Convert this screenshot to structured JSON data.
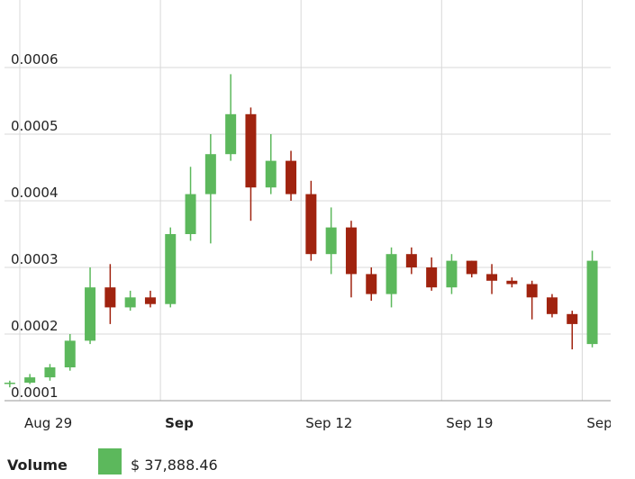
{
  "chart_data": {
    "type": "candlestick",
    "x": [
      "Aug 28",
      "Aug 29",
      "Aug 30",
      "Aug 31",
      "Sep 1",
      "Sep 2",
      "Sep 3",
      "Sep 4",
      "Sep 5",
      "Sep 6",
      "Sep 7",
      "Sep 8",
      "Sep 9",
      "Sep 10",
      "Sep 11",
      "Sep 12",
      "Sep 13",
      "Sep 14",
      "Sep 15",
      "Sep 16",
      "Sep 17",
      "Sep 18",
      "Sep 19",
      "Sep 20",
      "Sep 21",
      "Sep 22",
      "Sep 23",
      "Sep 24",
      "Sep 25",
      "Sep 26"
    ],
    "open": [
      0.000125,
      0.000127,
      0.000135,
      0.00015,
      0.00019,
      0.00027,
      0.00024,
      0.000255,
      0.000245,
      0.00035,
      0.00041,
      0.00047,
      0.00053,
      0.00042,
      0.00046,
      0.00041,
      0.00032,
      0.00036,
      0.00029,
      0.00026,
      0.00032,
      0.0003,
      0.00027,
      0.00031,
      0.00029,
      0.00028,
      0.000275,
      0.000255,
      0.00023,
      0.000185
    ],
    "high": [
      0.00013,
      0.00014,
      0.000155,
      0.0002,
      0.0003,
      0.000305,
      0.000265,
      0.000265,
      0.00036,
      0.000451,
      0.0005,
      0.00059,
      0.00054,
      0.0005,
      0.000475,
      0.00043,
      0.00039,
      0.00037,
      0.0003,
      0.00033,
      0.00033,
      0.000315,
      0.00032,
      0.00031,
      0.000305,
      0.000285,
      0.00028,
      0.00026,
      0.000235,
      0.000325
    ],
    "low": [
      0.00012,
      0.000125,
      0.00013,
      0.000145,
      0.000185,
      0.000215,
      0.000235,
      0.00024,
      0.00024,
      0.00034,
      0.000336,
      0.00046,
      0.00037,
      0.00041,
      0.0004,
      0.00031,
      0.00029,
      0.000255,
      0.00025,
      0.00024,
      0.00029,
      0.000265,
      0.00026,
      0.000285,
      0.00026,
      0.00027,
      0.000222,
      0.000225,
      0.000177,
      0.00018
    ],
    "close": [
      0.000127,
      0.000135,
      0.00015,
      0.00019,
      0.00027,
      0.00024,
      0.000255,
      0.000245,
      0.00035,
      0.00041,
      0.00047,
      0.00053,
      0.00042,
      0.00046,
      0.00041,
      0.00032,
      0.00036,
      0.00029,
      0.00026,
      0.00032,
      0.0003,
      0.00027,
      0.00031,
      0.00029,
      0.00028,
      0.000275,
      0.000255,
      0.00023,
      0.000215,
      0.00031
    ],
    "up_color": "#5cb85c",
    "down_color": "#a0230f",
    "ylim": [
      0.0001,
      0.0007
    ],
    "yticks": [
      0.0001,
      0.0002,
      0.0003,
      0.0004,
      0.0005,
      0.0006
    ],
    "xticks": [
      "Aug 29",
      {
        "value": "Sep 5",
        "label": "Sep"
      },
      "Sep 12",
      "Sep 19",
      {
        "value": "Sep 26",
        "label": "Sep"
      }
    ],
    "grid": true
  },
  "footer": {
    "label": "Volume",
    "value": "$ 37,888.46",
    "color": "#5cb85c"
  }
}
